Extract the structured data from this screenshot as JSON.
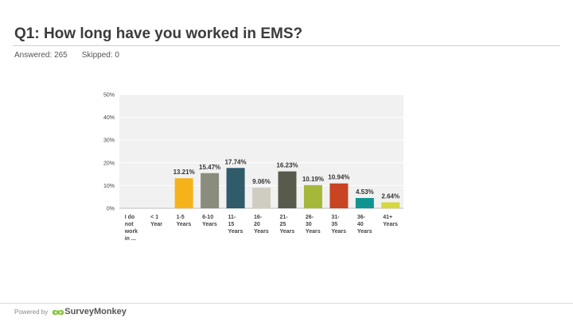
{
  "question_title": "Q1: How long have you worked in EMS?",
  "stats": {
    "answered": "Answered: 265",
    "skipped": "Skipped: 0"
  },
  "footer": {
    "powered_by": "Powered by",
    "brand": "SurveyMonkey"
  },
  "chart_data": {
    "type": "bar",
    "categories": [
      [
        "I do",
        "not",
        "work",
        "in ..."
      ],
      [
        "< 1",
        "Year"
      ],
      [
        "1-5",
        "Years"
      ],
      [
        "6-10",
        "Years"
      ],
      [
        "11-",
        "15",
        "Years"
      ],
      [
        "16-",
        "20",
        "Years"
      ],
      [
        "21-",
        "25",
        "Years"
      ],
      [
        "26-",
        "30",
        "Years"
      ],
      [
        "31-",
        "35",
        "Years"
      ],
      [
        "36-",
        "40",
        "Years"
      ],
      [
        "41+",
        "Years"
      ]
    ],
    "values": [
      0,
      0,
      13.21,
      15.47,
      17.74,
      9.06,
      16.23,
      10.19,
      10.94,
      4.53,
      2.64
    ],
    "value_labels": [
      "",
      "",
      "13.21%",
      "15.47%",
      "17.74%",
      "9.06%",
      "16.23%",
      "10.19%",
      "10.94%",
      "4.53%",
      "2.64%"
    ],
    "colors": [
      "#f6b21b",
      "#f6b21b",
      "#f6b21b",
      "#8a8c7d",
      "#2f5b6b",
      "#cfcdc2",
      "#585b4c",
      "#a5b83a",
      "#c84423",
      "#0f9591",
      "#d7d63e"
    ],
    "yticks": [
      "0%",
      "10%",
      "20%",
      "30%",
      "40%",
      "50%"
    ],
    "ylim": [
      0,
      50
    ],
    "grid": true
  }
}
